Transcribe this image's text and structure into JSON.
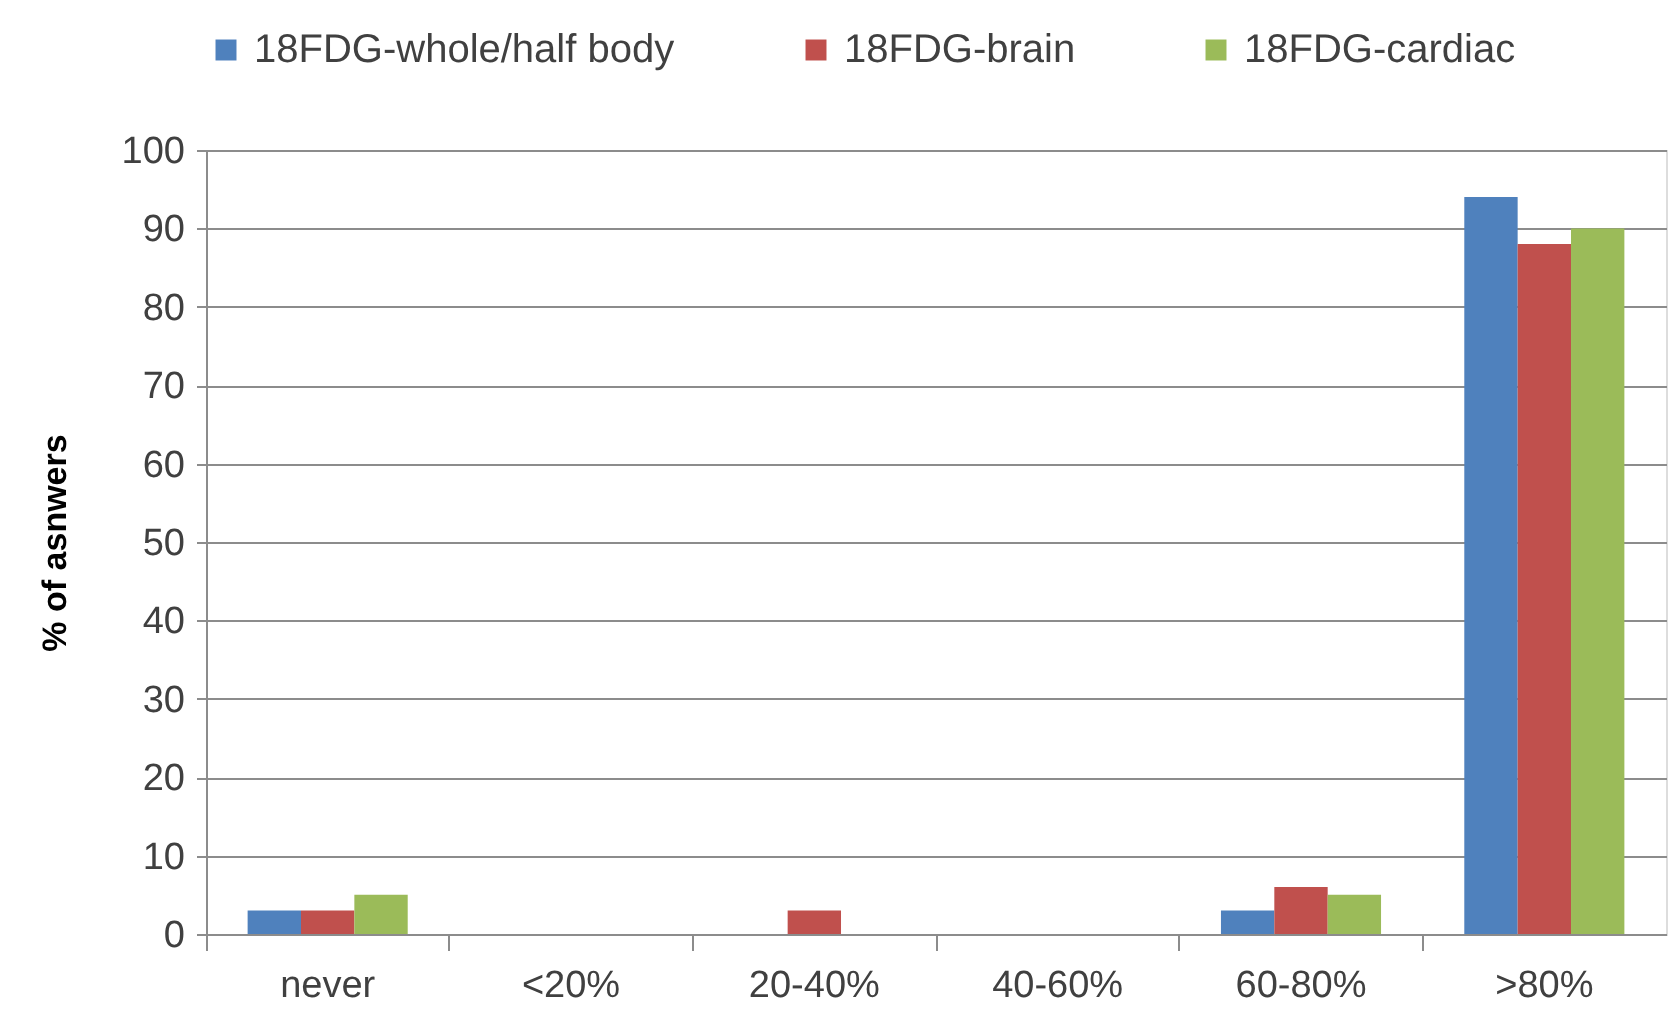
{
  "chart_data": {
    "type": "bar",
    "categories": [
      "never",
      "<20%",
      "20-40%",
      "40-60%",
      "60-80%",
      ">80%"
    ],
    "series": [
      {
        "name": "18FDG-whole/half body",
        "color": "#4f81bd",
        "values": [
          3,
          null,
          null,
          null,
          3,
          94
        ]
      },
      {
        "name": "18FDG-brain",
        "color": "#c0504d",
        "values": [
          3,
          null,
          3,
          null,
          6,
          88
        ]
      },
      {
        "name": "18FDG-cardiac",
        "color": "#9bbb59",
        "values": [
          5,
          null,
          null,
          null,
          5,
          90
        ]
      }
    ],
    "ylabel": "% of asnwers",
    "ylim": [
      0,
      100
    ],
    "yticks": [
      0,
      10,
      20,
      30,
      40,
      50,
      60,
      70,
      80,
      90,
      100
    ],
    "grid": "y",
    "legend": "top"
  }
}
